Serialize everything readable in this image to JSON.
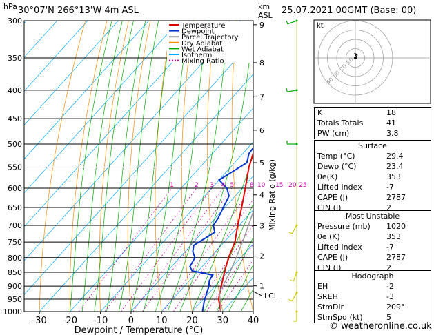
{
  "header": {
    "station": "30°07'N  266°13'W  4m  ASL",
    "datetime": "25.07.2021  00GMT  (Base: 00)",
    "hpa_label": "hPa",
    "km_label": "km",
    "asl_label": "ASL"
  },
  "legend": [
    {
      "label": "Temperature",
      "color": "#e00000",
      "dash": false
    },
    {
      "label": "Dewpoint",
      "color": "#0033cc",
      "dash": false
    },
    {
      "label": "Parcel Trajectory",
      "color": "#999999",
      "dash": false
    },
    {
      "label": "Dry Adiabat",
      "color": "#ff8c00",
      "dash": false
    },
    {
      "label": "Wet Adiabat",
      "color": "#00aa00",
      "dash": false
    },
    {
      "label": "Isotherm",
      "color": "#00aaff",
      "dash": false
    },
    {
      "label": "Mixing Ratio",
      "color": "#cc00aa",
      "dash": true
    }
  ],
  "chart_data": {
    "type": "line",
    "xlabel": "Dewpoint / Temperature (°C)",
    "ylabel": "hPa",
    "xlim": [
      -35,
      40
    ],
    "ylim": [
      1000,
      300
    ],
    "y_scale": "log",
    "pressure_ticks": [
      300,
      350,
      400,
      450,
      500,
      550,
      600,
      650,
      700,
      750,
      800,
      850,
      900,
      950,
      1000
    ],
    "x_ticks": [
      -30,
      -20,
      -10,
      0,
      10,
      20,
      30,
      40
    ],
    "km_ticks": [
      {
        "km": "9",
        "p": 305
      },
      {
        "km": "8",
        "p": 357
      },
      {
        "km": "7",
        "p": 411
      },
      {
        "km": "6",
        "p": 472
      },
      {
        "km": "5",
        "p": 540
      },
      {
        "km": "4",
        "p": 617
      },
      {
        "km": "3",
        "p": 701
      },
      {
        "km": "2",
        "p": 795
      },
      {
        "km": "1",
        "p": 899
      }
    ],
    "lcl_label": "LCL",
    "lcl_p": 920,
    "mixing_ratio_axis_label": "Mixing Ratio (g/kg)",
    "mixing_ratio_labels": [
      "1",
      "2",
      "3",
      "4",
      "5",
      "8",
      "10",
      "15",
      "20",
      "25"
    ],
    "mixing_ratio_values": [
      1,
      2,
      3,
      4,
      5,
      8,
      10,
      15,
      20,
      25
    ],
    "series": [
      {
        "name": "Temperature",
        "color": "#e00000",
        "p": [
          1000,
          950,
          900,
          850,
          800,
          750,
          700,
          650,
          600,
          550,
          500,
          450,
          400,
          350,
          300
        ],
        "t": [
          29.4,
          25.0,
          22.0,
          19.0,
          16.0,
          13.5,
          9.5,
          5.5,
          1.0,
          -4.0,
          -8.5,
          -14.5,
          -22.5,
          -31.5,
          -41.0
        ]
      },
      {
        "name": "Dewpoint",
        "color": "#0033cc",
        "p": [
          1000,
          960,
          930,
          900,
          880,
          860,
          845,
          830,
          800,
          780,
          760,
          740,
          720,
          700,
          680,
          650,
          620,
          600,
          580,
          560,
          540,
          520,
          500,
          470,
          450,
          420,
          400,
          380,
          370,
          350,
          330,
          300
        ],
        "t": [
          23.4,
          21.0,
          19.5,
          18.0,
          16.5,
          16.0,
          8.0,
          6.0,
          5.0,
          2.5,
          1.0,
          2.5,
          4.0,
          1.5,
          1.0,
          -0.5,
          -2.0,
          -5.0,
          -10.0,
          -8.0,
          -6.0,
          -8.0,
          -8.5,
          -10.0,
          -10.5,
          -11.5,
          -14.0,
          -10.0,
          -21.0,
          -18.0,
          -20.0,
          -34.0
        ]
      },
      {
        "name": "Parcel Trajectory",
        "color": "#999999",
        "p": [
          1000,
          950,
          920,
          900,
          850,
          800,
          750,
          700,
          650,
          600,
          550,
          500,
          450,
          400,
          350,
          300
        ],
        "t": [
          29.4,
          25.5,
          23.0,
          22.5,
          20.8,
          18.5,
          16.0,
          13.0,
          9.8,
          6.0,
          1.5,
          -3.8,
          -10.0,
          -17.0,
          -25.5,
          -36.0
        ]
      }
    ]
  },
  "hodograph": {
    "label": "kt",
    "ring_labels": [
      "10",
      "20",
      "30",
      "40"
    ],
    "trace": [
      [
        0,
        0
      ],
      [
        2,
        3
      ],
      [
        -1,
        5
      ],
      [
        1,
        4
      ],
      [
        0,
        2
      ]
    ]
  },
  "wind_barbs": [
    {
      "p": 300,
      "dir": 250,
      "spd": 15
    },
    {
      "p": 400,
      "dir": 260,
      "spd": 5
    },
    {
      "p": 500,
      "dir": 270,
      "spd": 10
    },
    {
      "p": 700,
      "dir": 210,
      "spd": 5
    },
    {
      "p": 850,
      "dir": 200,
      "spd": 5
    },
    {
      "p": 925,
      "dir": 210,
      "spd": 5
    },
    {
      "p": 1000,
      "dir": 180,
      "spd": 5
    }
  ],
  "indices": [
    {
      "label": "K",
      "value": "18"
    },
    {
      "label": "Totals Totals",
      "value": "41"
    },
    {
      "label": "PW (cm)",
      "value": "3.8"
    }
  ],
  "surface": {
    "title": "Surface",
    "rows": [
      {
        "label": "Temp (°C)",
        "value": "29.4"
      },
      {
        "label": "Dewp (°C)",
        "value": "23.4"
      },
      {
        "label": "θe(K)",
        "value": "353"
      },
      {
        "label": "Lifted Index",
        "value": "-7"
      },
      {
        "label": "CAPE (J)",
        "value": "2787"
      },
      {
        "label": "CIN (J)",
        "value": "2"
      }
    ]
  },
  "most_unstable": {
    "title": "Most Unstable",
    "rows": [
      {
        "label": "Pressure (mb)",
        "value": "1020"
      },
      {
        "label": "θe (K)",
        "value": "353"
      },
      {
        "label": "Lifted Index",
        "value": "-7"
      },
      {
        "label": "CAPE (J)",
        "value": "2787"
      },
      {
        "label": "CIN (J)",
        "value": "2"
      }
    ]
  },
  "hodograph_table": {
    "title": "Hodograph",
    "rows": [
      {
        "label": "EH",
        "value": "-2"
      },
      {
        "label": "SREH",
        "value": "-3"
      },
      {
        "label": "StmDir",
        "value": "209°"
      },
      {
        "label": "StmSpd (kt)",
        "value": "5"
      }
    ]
  },
  "footer": "© weatheronline.co.uk"
}
